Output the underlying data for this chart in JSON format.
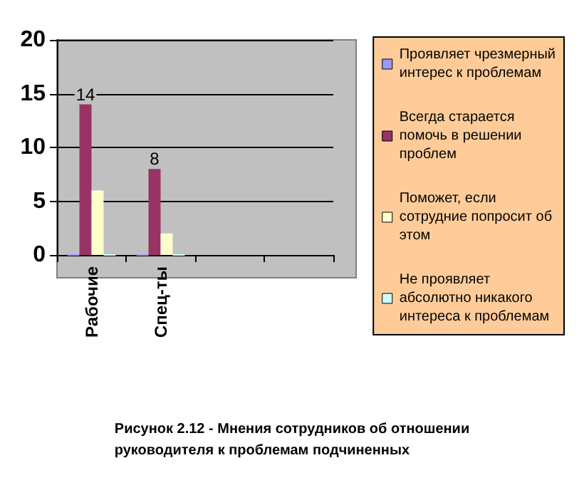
{
  "chart_data": {
    "type": "bar",
    "categories": [
      "Рабочие",
      "Спец-ты",
      null,
      null
    ],
    "series": [
      {
        "name": "Проявляет чрезмерный интерес к проблемам",
        "color": "#9999ff",
        "values": [
          0,
          0,
          null,
          null
        ]
      },
      {
        "name": "Всегда старается помочь в решении проблем",
        "color": "#993366",
        "values": [
          14,
          8,
          null,
          null
        ],
        "value_labels": [
          "14",
          "8",
          null,
          null
        ]
      },
      {
        "name": "Поможет, если сотрудние попросит об этом",
        "color": "#ffffcc",
        "values": [
          6,
          2,
          null,
          null
        ]
      },
      {
        "name": "Не проявляет абсолютно никакого интереса к проблемам",
        "color": "#ccffff",
        "values": [
          0,
          0,
          null,
          null
        ]
      }
    ],
    "ylim": [
      0,
      20
    ],
    "yticks": [
      0,
      5,
      10,
      15,
      20
    ],
    "grid": "y",
    "legend": "right",
    "annotations": [
      "Рисунок 2.12 - Мнения сотрудников об отношении руководителя к проблемам подчиненных"
    ]
  }
}
